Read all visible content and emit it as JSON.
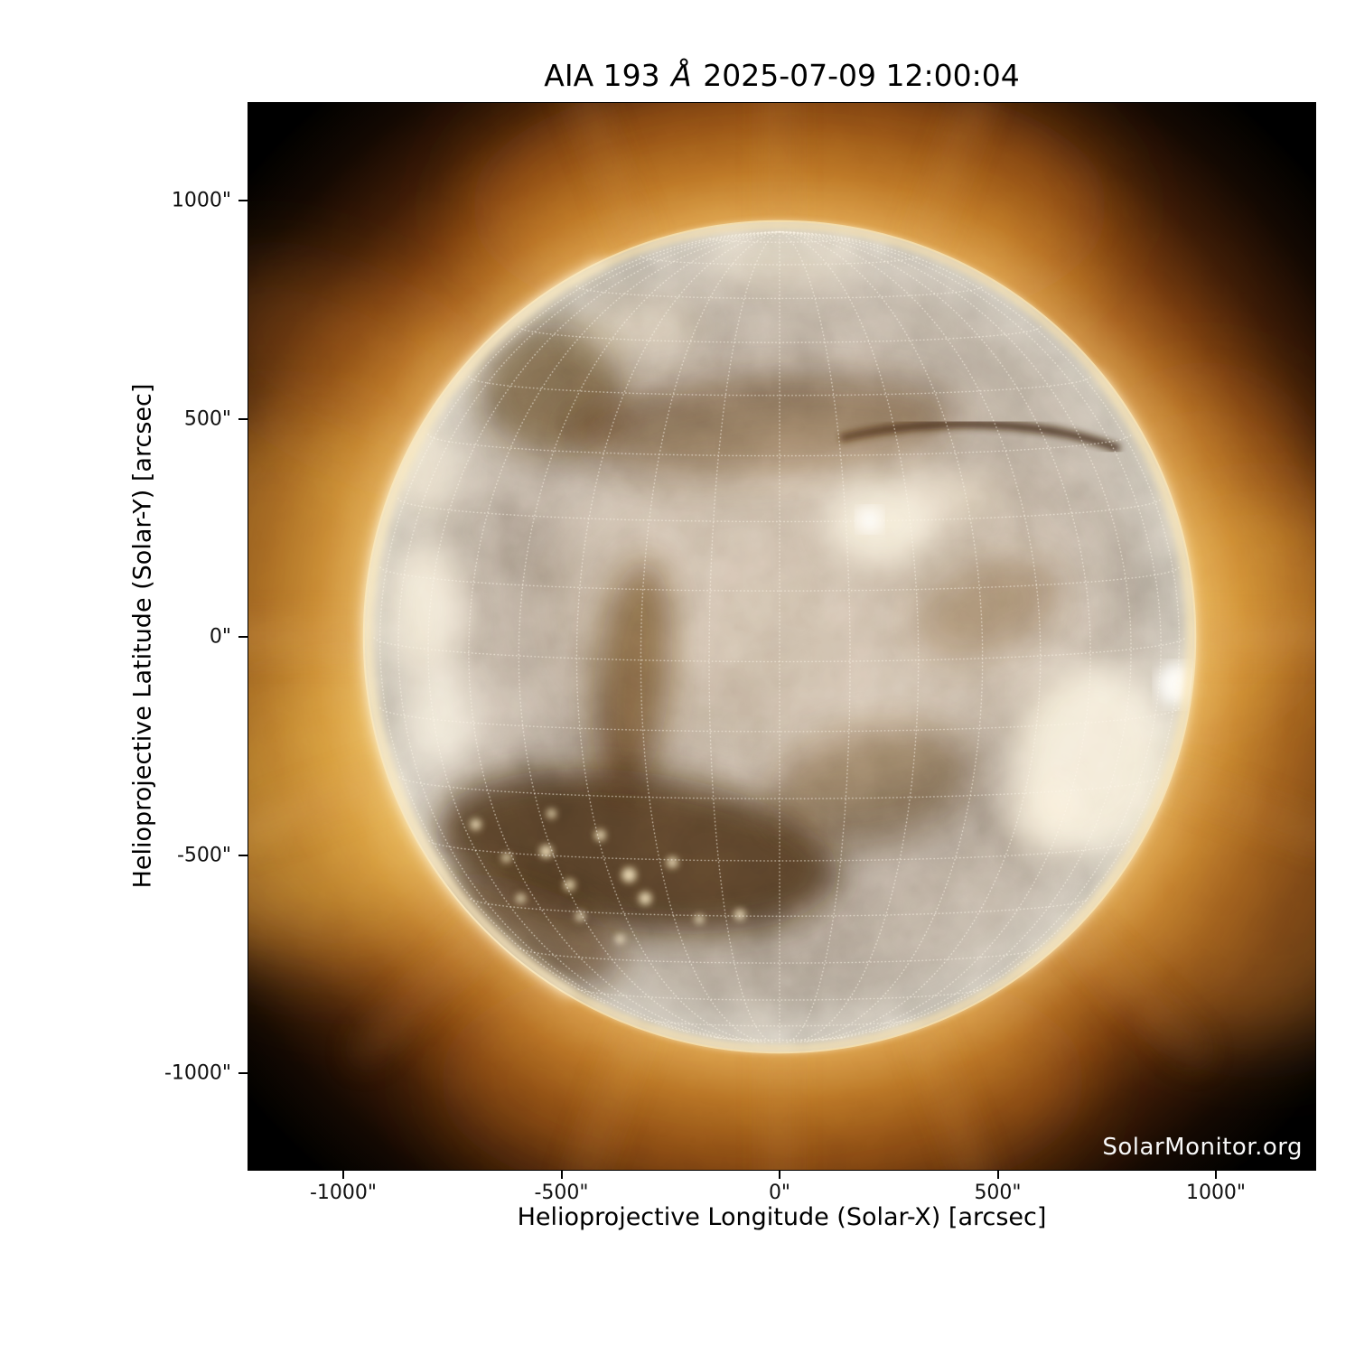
{
  "figure": {
    "title": {
      "full": "AIA 193 Å 2025-07-09 12:00:04",
      "prefix": "AIA 193 ",
      "angstrom": "Å",
      "suffix": " 2025-07-09 12:00:04"
    },
    "watermark": "SolarMonitor.org"
  },
  "axes": {
    "x": {
      "label": "Helioprojective Longitude (Solar-X) [arcsec]",
      "tick_labels": [
        "-1000\"",
        "-500\"",
        "0\"",
        "500\"",
        "1000\""
      ]
    },
    "y": {
      "label": "Helioprojective Latitude (Solar-Y) [arcsec]",
      "tick_labels": [
        "1000\"",
        "500\"",
        "0\"",
        "-500\"",
        "-1000\""
      ]
    }
  },
  "chart_data": {
    "type": "heatmap",
    "subtype": "solar-euv-image",
    "title": "AIA 193 Å 2025-07-09 12:00:04",
    "instrument": "AIA",
    "wavelength": "193 Å",
    "datetime": "2025-07-09 12:00:04",
    "xlabel": "Helioprojective Longitude (Solar-X) [arcsec]",
    "ylabel": "Helioprojective Latitude (Solar-Y) [arcsec]",
    "xlim": [
      -1225,
      1225
    ],
    "ylim": [
      -1225,
      1225
    ],
    "x_ticks": [
      -1000,
      -500,
      0,
      500,
      1000
    ],
    "y_ticks": [
      1000,
      500,
      0,
      -500,
      -1000
    ],
    "tick_unit": "arcsec",
    "grid": {
      "kind": "heliographic graticule",
      "spacing_deg": 10,
      "style": "dotted",
      "color": "#fff8ea",
      "tilt_b0_deg": 3.5
    },
    "solar_disk": {
      "center_arcsec": [
        0,
        0
      ],
      "radius_arcsec": 950,
      "limb_brightening": true
    },
    "colormap": {
      "name": "SDO AIA 193 bronze",
      "background": "#000000",
      "low": "#2a1204",
      "mid": "#b97a35",
      "high": "#fff3d6"
    },
    "features": [
      {
        "label": "bright active region with fan loops near southwest limb",
        "solar_x": 730,
        "solar_y": -280
      },
      {
        "label": "very bright compact source on west limb",
        "solar_x": 915,
        "solar_y": -110
      },
      {
        "label": "bright active region near disk center",
        "solar_x": 210,
        "solar_y": 250
      },
      {
        "label": "bright faculae along east limb",
        "solar_x": -890,
        "solar_y": -30
      },
      {
        "label": "large elongated coronal hole, south-central disk with bright points",
        "solar_x": -330,
        "solar_y": -310
      },
      {
        "label": "narrow vertical coronal-hole channel east of center",
        "solar_x": -380,
        "solar_y": -60
      },
      {
        "label": "long dark filament channel, northwest quadrant",
        "solar_x": 480,
        "solar_y": 450
      },
      {
        "label": "dark patch, northeast quadrant",
        "solar_x": -520,
        "solar_y": 570
      },
      {
        "label": "polar plumes above north limb",
        "solar_x": 0,
        "solar_y": 1050
      },
      {
        "label": "enhanced streamer corona off east limb",
        "solar_x": -1100,
        "solar_y": -100
      },
      {
        "label": "enhanced corona off west limb",
        "solar_x": 1080,
        "solar_y": -250
      }
    ]
  }
}
